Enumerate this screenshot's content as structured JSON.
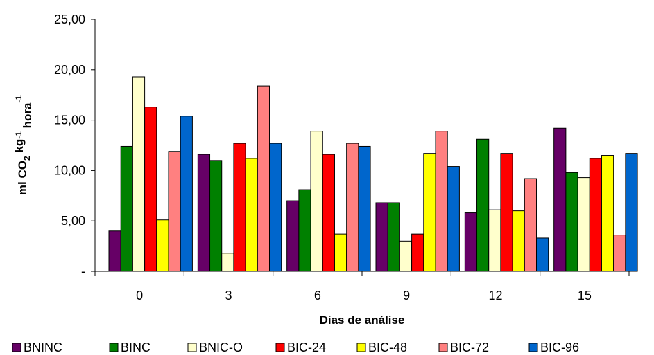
{
  "chart_data": {
    "type": "bar",
    "xlabel": "Dias de análise",
    "ylabel_parts": [
      "ml CO",
      "2",
      " kg",
      "-1",
      " hora",
      "-1"
    ],
    "categories": [
      "0",
      "3",
      "6",
      "9",
      "12",
      "15"
    ],
    "ylim": [
      0,
      25
    ],
    "yticks": [
      0,
      5,
      10,
      15,
      20,
      25
    ],
    "ytick_labels": [
      "-",
      "5,00",
      "10,00",
      "15,00",
      "20,00",
      "25,00"
    ],
    "grid": false,
    "legend_position": "bottom",
    "series": [
      {
        "name": "BNINC",
        "color": "#660066",
        "values": [
          4.0,
          11.6,
          7.0,
          6.8,
          5.8,
          14.2
        ]
      },
      {
        "name": "BINC",
        "color": "#008000",
        "values": [
          12.4,
          11.0,
          8.1,
          6.8,
          13.1,
          9.8
        ]
      },
      {
        "name": "BNIC-O",
        "color": "#FFFFCC",
        "values": [
          19.3,
          1.8,
          13.9,
          3.0,
          6.1,
          9.3
        ]
      },
      {
        "name": "BIC-24",
        "color": "#FF0000",
        "values": [
          16.3,
          12.7,
          11.6,
          3.7,
          11.7,
          11.2
        ]
      },
      {
        "name": "BIC-48",
        "color": "#FFFF00",
        "values": [
          5.1,
          11.2,
          3.7,
          11.7,
          6.0,
          11.5
        ]
      },
      {
        "name": "BIC-72",
        "color": "#FF8080",
        "values": [
          11.9,
          18.4,
          12.7,
          13.9,
          9.2,
          3.6
        ]
      },
      {
        "name": "BIC-96",
        "color": "#0066CC",
        "values": [
          15.4,
          12.7,
          12.4,
          10.4,
          3.3,
          11.7
        ]
      }
    ]
  }
}
